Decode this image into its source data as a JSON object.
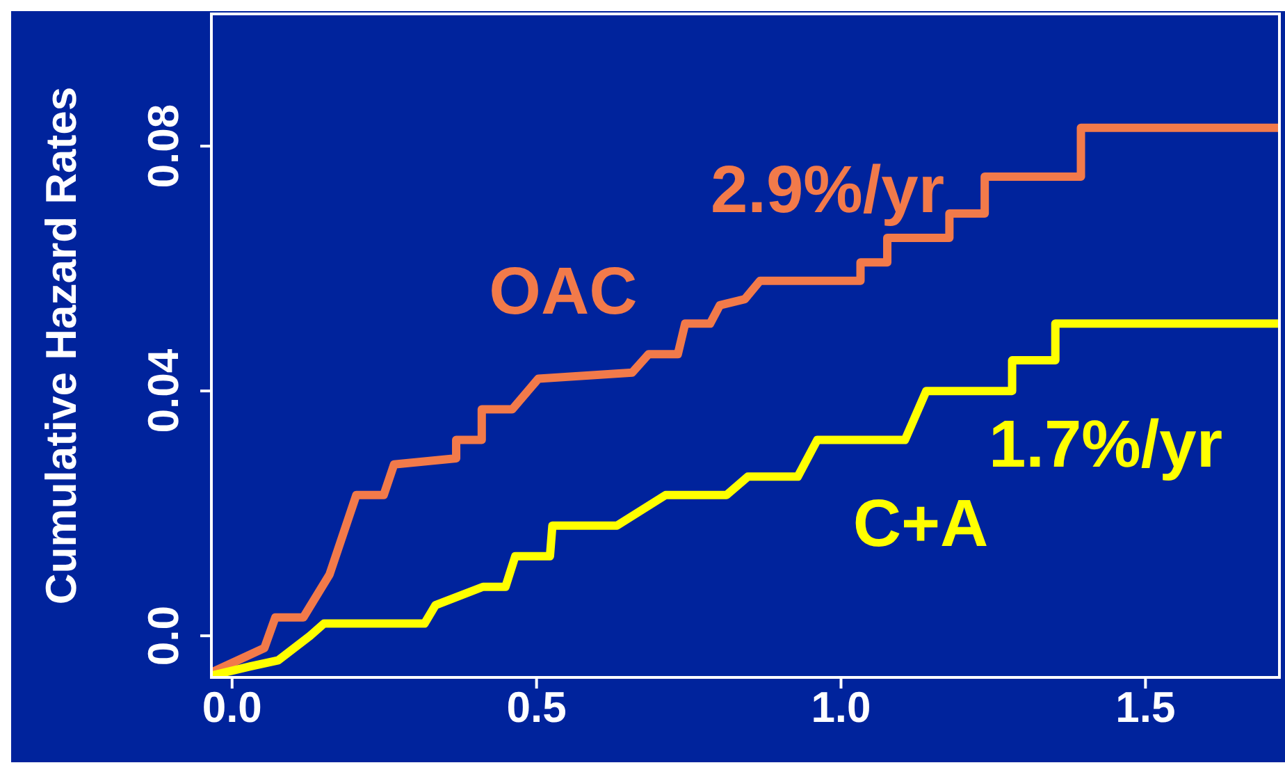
{
  "chart_data": {
    "type": "line",
    "ylabel": "Cumulative Hazard Rates",
    "xlim": [
      -0.034,
      1.72
    ],
    "xticks": [
      {
        "value": 0,
        "label": "0.0"
      },
      0.5,
      {
        "value": 1,
        "label": "1.0"
      },
      1.5
    ],
    "ylim": [
      -0.0068,
      0.1016
    ],
    "yticks": [
      {
        "value": 0,
        "label": "0.0"
      },
      0.04,
      0.08
    ],
    "marker": "none",
    "line_style": "solid",
    "series": [
      {
        "name": "OAC",
        "color": "#f27a4a",
        "x": [
          -0.034,
          0.053,
          0.071,
          0.117,
          0.16,
          0.204,
          0.249,
          0.266,
          0.368,
          0.368,
          0.41,
          0.41,
          0.46,
          0.503,
          0.657,
          0.684,
          0.732,
          0.744,
          0.785,
          0.801,
          0.842,
          0.867,
          1.032,
          1.032,
          1.076,
          1.076,
          1.178,
          1.178,
          1.236,
          1.236,
          1.394,
          1.394,
          1.72
        ],
        "values": [
          -0.006,
          -0.002,
          0.003,
          0.003,
          0.01,
          0.023,
          0.023,
          0.028,
          0.029,
          0.032,
          0.032,
          0.037,
          0.037,
          0.042,
          0.043,
          0.046,
          0.046,
          0.051,
          0.051,
          0.054,
          0.055,
          0.058,
          0.058,
          0.061,
          0.061,
          0.065,
          0.065,
          0.069,
          0.069,
          0.075,
          0.075,
          0.083,
          0.083
        ]
      },
      {
        "name": "C+A",
        "color": "#ffff00",
        "x": [
          -0.034,
          0.03,
          0.076,
          0.128,
          0.151,
          0.316,
          0.334,
          0.412,
          0.449,
          0.465,
          0.522,
          0.526,
          0.632,
          0.712,
          0.812,
          0.847,
          0.929,
          0.961,
          1.105,
          1.14,
          1.281,
          1.281,
          1.352,
          1.352,
          1.72
        ],
        "values": [
          -0.0065,
          -0.005,
          -0.004,
          0,
          0.002,
          0.002,
          0.005,
          0.008,
          0.008,
          0.013,
          0.013,
          0.018,
          0.018,
          0.023,
          0.023,
          0.026,
          0.026,
          0.032,
          0.032,
          0.04,
          0.04,
          0.045,
          0.045,
          0.051,
          0.051
        ]
      }
    ],
    "annotations": [
      "2.9%/yr",
      "1.7%/yr"
    ]
  }
}
